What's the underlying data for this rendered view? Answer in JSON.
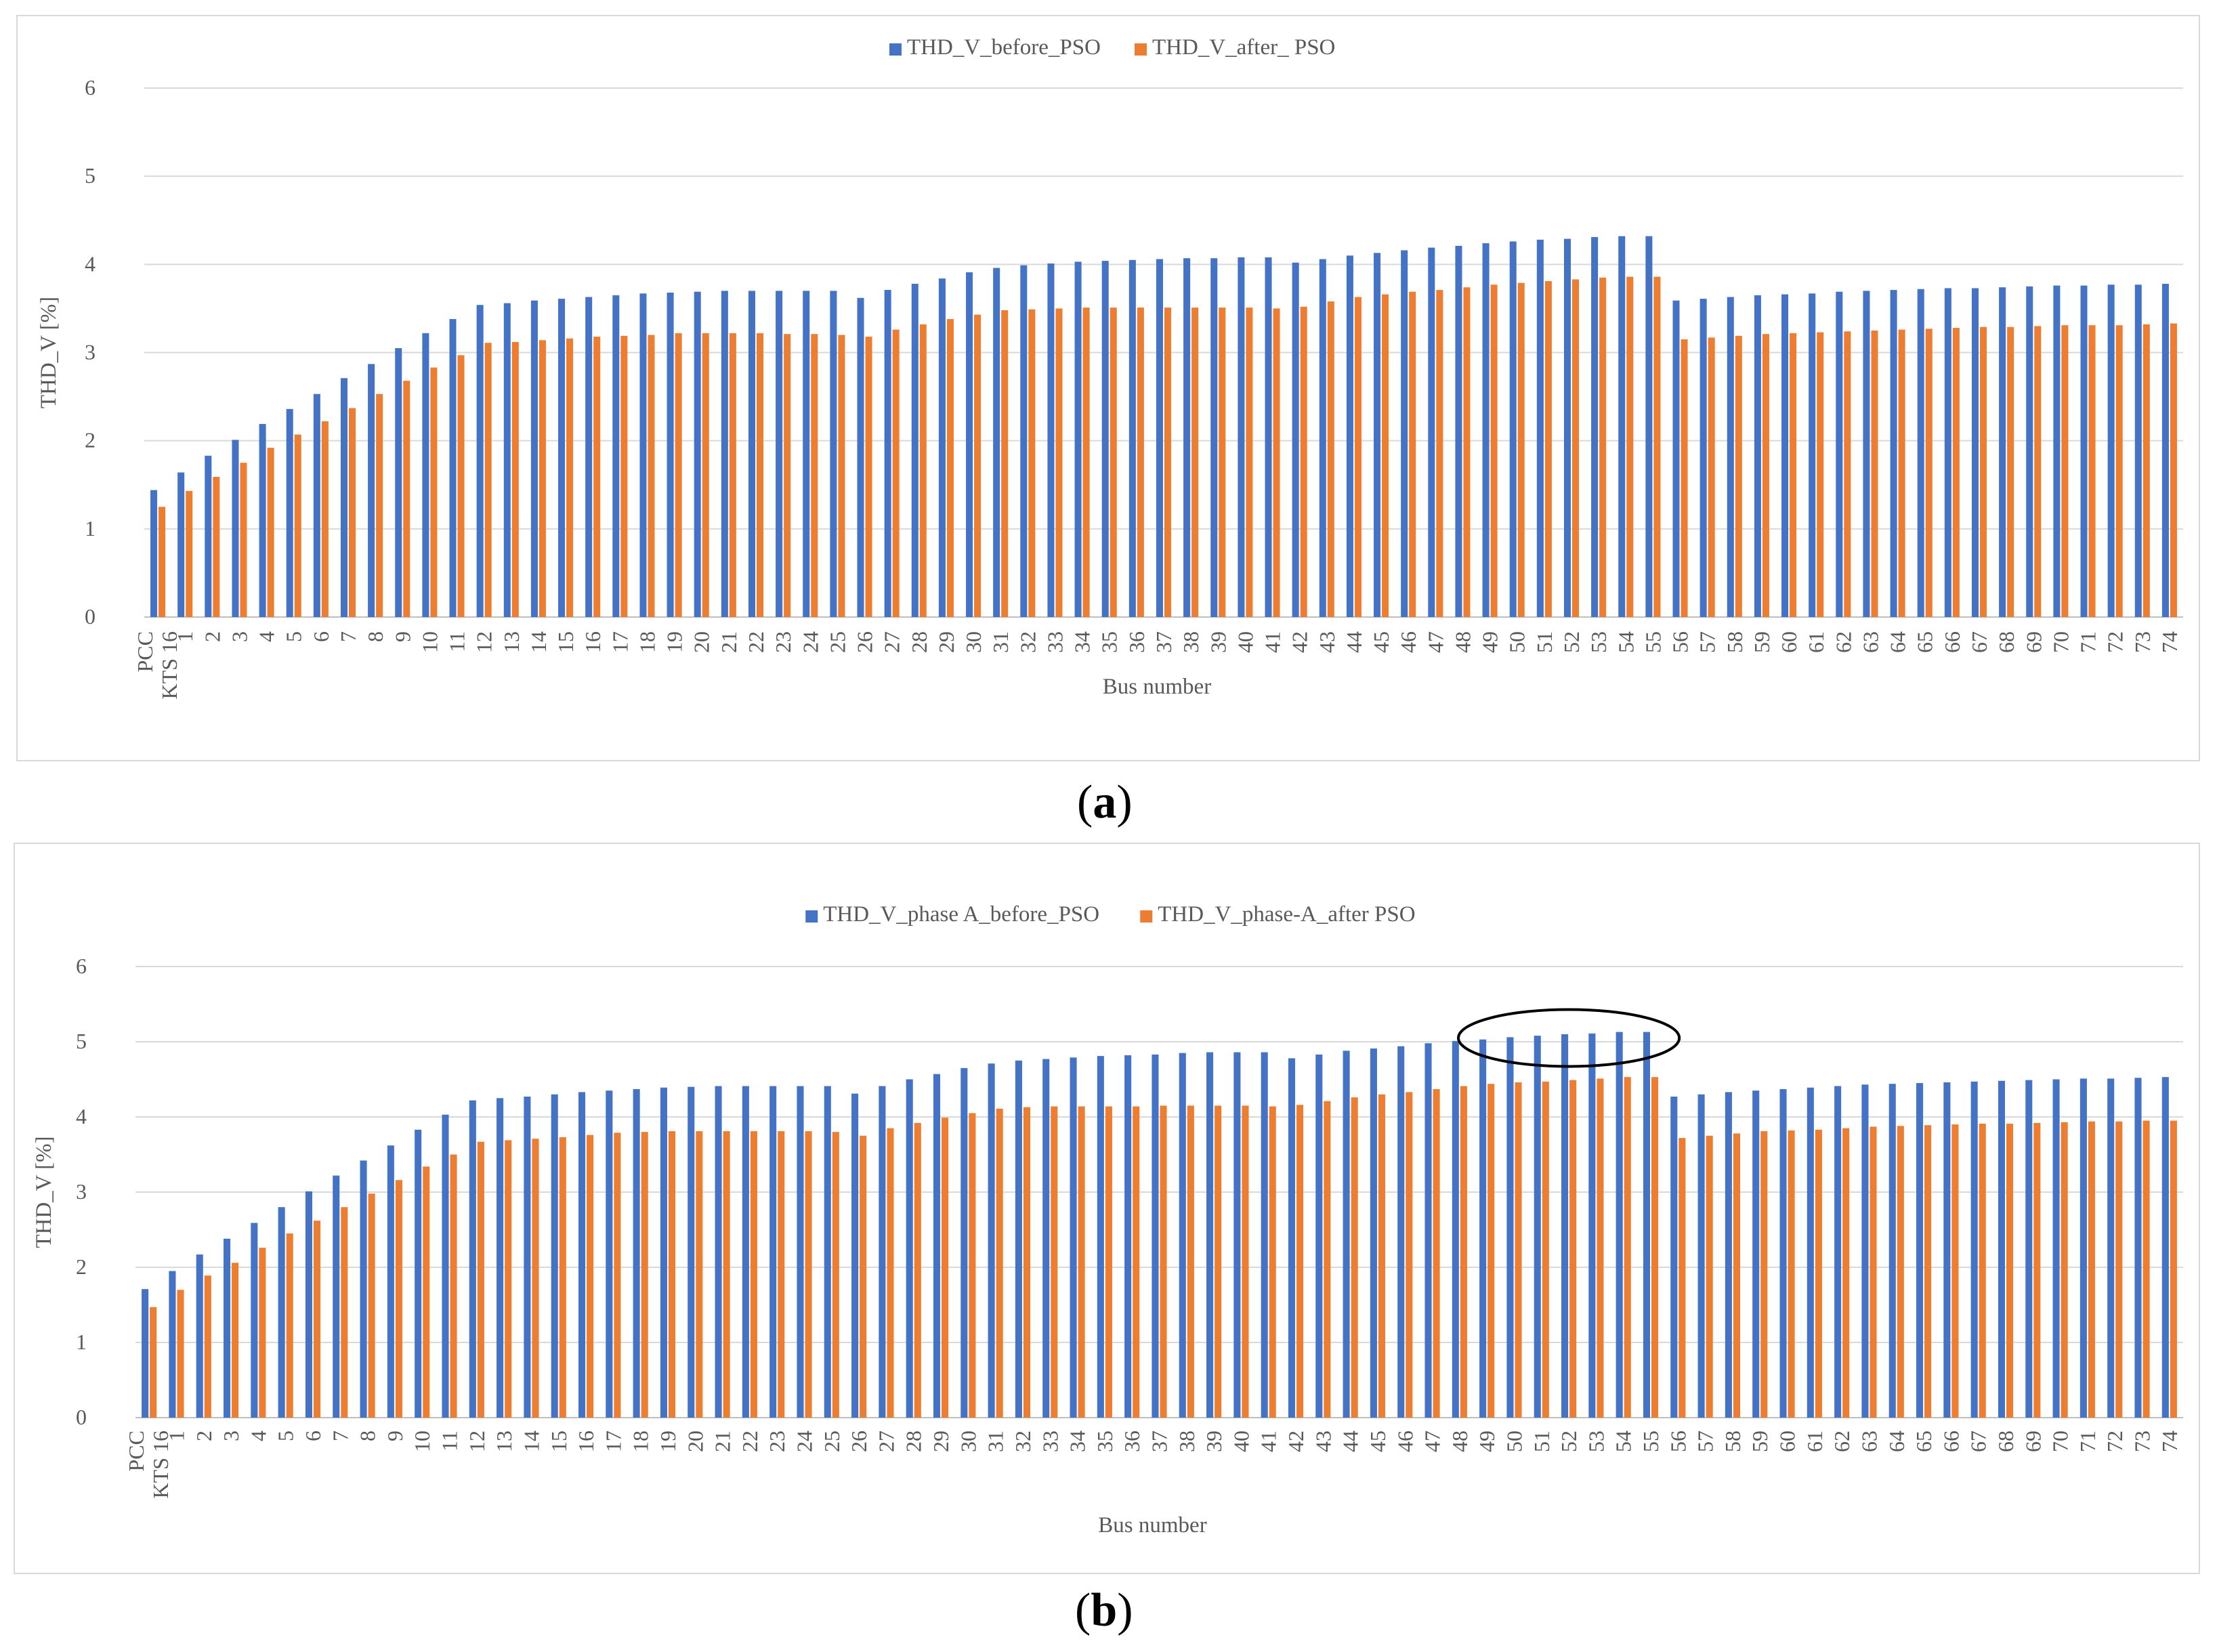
{
  "colors": {
    "before": "#4472C4",
    "after": "#ED7D31",
    "grid": "#d9d9d9",
    "text": "#595959",
    "ellipse": "#000000"
  },
  "panel_labels": {
    "a_open": "(",
    "a_letter": "a",
    "a_close": ")",
    "b_open": "(",
    "b_letter": "b",
    "b_close": ")"
  },
  "chart_data": [
    {
      "type": "bar",
      "id": "a",
      "title": "",
      "xlabel": "Bus number",
      "ylabel": "THD_V [%]",
      "ylim": [
        0,
        6
      ],
      "yticks": [
        "0",
        "1",
        "2",
        "3",
        "4",
        "5",
        "6"
      ],
      "grid": true,
      "legend_position": "top-center",
      "categories": [
        "PCC KTS 16",
        "1",
        "2",
        "3",
        "4",
        "5",
        "6",
        "7",
        "8",
        "9",
        "10",
        "11",
        "12",
        "13",
        "14",
        "15",
        "16",
        "17",
        "18",
        "19",
        "20",
        "21",
        "22",
        "23",
        "24",
        "25",
        "26",
        "27",
        "28",
        "29",
        "30",
        "31",
        "32",
        "33",
        "34",
        "35",
        "36",
        "37",
        "38",
        "39",
        "40",
        "41",
        "42",
        "43",
        "44",
        "45",
        "46",
        "47",
        "48",
        "49",
        "50",
        "51",
        "52",
        "53",
        "54",
        "55",
        "56",
        "57",
        "58",
        "59",
        "60",
        "61",
        "62",
        "63",
        "64",
        "65",
        "66",
        "67",
        "68",
        "69",
        "70",
        "71",
        "72",
        "73",
        "74"
      ],
      "category_lines": [
        [
          "PCC",
          "KTS 16"
        ]
      ],
      "series": [
        {
          "name": "THD_V_before_PSO",
          "color": "#4472C4",
          "values": [
            1.44,
            1.64,
            1.83,
            2.01,
            2.19,
            2.36,
            2.53,
            2.71,
            2.87,
            3.05,
            3.22,
            3.38,
            3.54,
            3.56,
            3.59,
            3.61,
            3.63,
            3.65,
            3.67,
            3.68,
            3.69,
            3.7,
            3.7,
            3.7,
            3.7,
            3.7,
            3.62,
            3.71,
            3.78,
            3.84,
            3.91,
            3.96,
            3.99,
            4.01,
            4.03,
            4.04,
            4.05,
            4.06,
            4.07,
            4.07,
            4.08,
            4.08,
            4.02,
            4.06,
            4.1,
            4.13,
            4.16,
            4.19,
            4.21,
            4.24,
            4.26,
            4.28,
            4.29,
            4.31,
            4.32,
            4.32,
            3.59,
            3.61,
            3.63,
            3.65,
            3.66,
            3.67,
            3.69,
            3.7,
            3.71,
            3.72,
            3.73,
            3.73,
            3.74,
            3.75,
            3.76,
            3.76,
            3.77,
            3.77,
            3.78
          ]
        },
        {
          "name": "THD_V_after_ PSO",
          "color": "#ED7D31",
          "values": [
            1.25,
            1.43,
            1.59,
            1.75,
            1.92,
            2.07,
            2.22,
            2.37,
            2.53,
            2.68,
            2.83,
            2.97,
            3.11,
            3.12,
            3.14,
            3.16,
            3.18,
            3.19,
            3.2,
            3.22,
            3.22,
            3.22,
            3.22,
            3.21,
            3.21,
            3.2,
            3.18,
            3.26,
            3.32,
            3.38,
            3.43,
            3.48,
            3.49,
            3.5,
            3.51,
            3.51,
            3.51,
            3.51,
            3.51,
            3.51,
            3.51,
            3.5,
            3.52,
            3.58,
            3.63,
            3.66,
            3.69,
            3.71,
            3.74,
            3.77,
            3.79,
            3.81,
            3.83,
            3.85,
            3.86,
            3.86,
            3.15,
            3.17,
            3.19,
            3.21,
            3.22,
            3.23,
            3.24,
            3.25,
            3.26,
            3.27,
            3.28,
            3.29,
            3.29,
            3.3,
            3.31,
            3.31,
            3.31,
            3.32,
            3.33
          ]
        }
      ]
    },
    {
      "type": "bar",
      "id": "b",
      "title": "",
      "xlabel": "Bus number",
      "ylabel": "THD_V [%]",
      "ylim": [
        0,
        6
      ],
      "yticks": [
        "0",
        "1",
        "2",
        "3",
        "4",
        "5",
        "6"
      ],
      "grid": true,
      "legend_position": "top-center",
      "annotation": "ellipse around buses 49–55",
      "categories": [
        "PCC KTS 16",
        "1",
        "2",
        "3",
        "4",
        "5",
        "6",
        "7",
        "8",
        "9",
        "10",
        "11",
        "12",
        "13",
        "14",
        "15",
        "16",
        "17",
        "18",
        "19",
        "20",
        "21",
        "22",
        "23",
        "24",
        "25",
        "26",
        "27",
        "28",
        "29",
        "30",
        "31",
        "32",
        "33",
        "34",
        "35",
        "36",
        "37",
        "38",
        "39",
        "40",
        "41",
        "42",
        "43",
        "44",
        "45",
        "46",
        "47",
        "48",
        "49",
        "50",
        "51",
        "52",
        "53",
        "54",
        "55",
        "56",
        "57",
        "58",
        "59",
        "60",
        "61",
        "62",
        "63",
        "64",
        "65",
        "66",
        "67",
        "68",
        "69",
        "70",
        "71",
        "72",
        "73",
        "74"
      ],
      "series": [
        {
          "name": "THD_V_phase A_before_PSO",
          "color": "#4472C4",
          "values": [
            1.71,
            1.95,
            2.17,
            2.38,
            2.59,
            2.8,
            3.01,
            3.22,
            3.42,
            3.62,
            3.83,
            4.03,
            4.22,
            4.25,
            4.27,
            4.3,
            4.33,
            4.35,
            4.37,
            4.39,
            4.4,
            4.41,
            4.41,
            4.41,
            4.41,
            4.41,
            4.31,
            4.41,
            4.5,
            4.57,
            4.65,
            4.71,
            4.75,
            4.77,
            4.79,
            4.81,
            4.82,
            4.83,
            4.85,
            4.86,
            4.86,
            4.86,
            4.78,
            4.83,
            4.88,
            4.91,
            4.94,
            4.98,
            5.01,
            5.03,
            5.06,
            5.08,
            5.1,
            5.11,
            5.13,
            5.13,
            4.27,
            4.3,
            4.33,
            4.35,
            4.37,
            4.39,
            4.41,
            4.43,
            4.44,
            4.45,
            4.46,
            4.47,
            4.48,
            4.49,
            4.5,
            4.51,
            4.51,
            4.52,
            4.53
          ]
        },
        {
          "name": "THD_V_phase-A_after PSO",
          "color": "#ED7D31",
          "values": [
            1.47,
            1.7,
            1.89,
            2.06,
            2.26,
            2.45,
            2.62,
            2.8,
            2.98,
            3.16,
            3.34,
            3.5,
            3.67,
            3.69,
            3.71,
            3.73,
            3.76,
            3.79,
            3.8,
            3.81,
            3.81,
            3.81,
            3.81,
            3.81,
            3.81,
            3.8,
            3.75,
            3.85,
            3.92,
            3.99,
            4.05,
            4.11,
            4.13,
            4.14,
            4.14,
            4.14,
            4.14,
            4.15,
            4.15,
            4.15,
            4.15,
            4.14,
            4.16,
            4.21,
            4.26,
            4.3,
            4.33,
            4.37,
            4.41,
            4.44,
            4.46,
            4.47,
            4.49,
            4.51,
            4.53,
            4.53,
            3.72,
            3.75,
            3.78,
            3.81,
            3.82,
            3.83,
            3.85,
            3.87,
            3.88,
            3.89,
            3.9,
            3.91,
            3.91,
            3.92,
            3.93,
            3.94,
            3.94,
            3.95,
            3.95
          ]
        }
      ]
    }
  ]
}
